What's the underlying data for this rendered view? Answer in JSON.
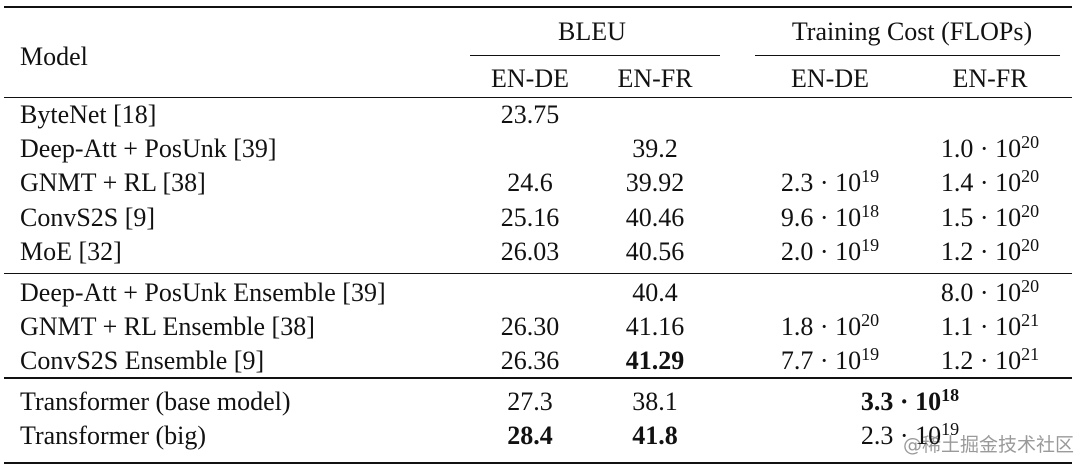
{
  "table": {
    "header": {
      "model": "Model",
      "bleu": "BLEU",
      "cost": "Training Cost (FLOPs)",
      "sub": [
        "EN-DE",
        "EN-FR",
        "EN-DE",
        "EN-FR"
      ]
    },
    "groups": [
      {
        "rows": [
          {
            "model": "ByteNet [18]",
            "bleu": [
              "23.75",
              null
            ],
            "cost": [
              null,
              null
            ]
          },
          {
            "model": "Deep-Att + PosUnk [39]",
            "bleu": [
              null,
              "39.2"
            ],
            "cost": [
              null,
              {
                "base": "1.0 · 10",
                "exp": "20"
              }
            ]
          },
          {
            "model": "GNMT + RL [38]",
            "bleu": [
              "24.6",
              "39.92"
            ],
            "cost": [
              {
                "base": "2.3 · 10",
                "exp": "19"
              },
              {
                "base": "1.4 · 10",
                "exp": "20"
              }
            ]
          },
          {
            "model": "ConvS2S [9]",
            "bleu": [
              "25.16",
              "40.46"
            ],
            "cost": [
              {
                "base": "9.6 · 10",
                "exp": "18"
              },
              {
                "base": "1.5 · 10",
                "exp": "20"
              }
            ]
          },
          {
            "model": "MoE [32]",
            "bleu": [
              "26.03",
              "40.56"
            ],
            "cost": [
              {
                "base": "2.0 · 10",
                "exp": "19"
              },
              {
                "base": "1.2 · 10",
                "exp": "20"
              }
            ]
          }
        ]
      },
      {
        "rows": [
          {
            "model": "Deep-Att + PosUnk Ensemble [39]",
            "bleu": [
              null,
              "40.4"
            ],
            "cost": [
              null,
              {
                "base": "8.0 · 10",
                "exp": "20"
              }
            ]
          },
          {
            "model": "GNMT + RL Ensemble [38]",
            "bleu": [
              "26.30",
              "41.16"
            ],
            "cost": [
              {
                "base": "1.8 · 10",
                "exp": "20"
              },
              {
                "base": "1.1 · 10",
                "exp": "21"
              }
            ]
          },
          {
            "model": "ConvS2S Ensemble [9]",
            "bleu": [
              "26.36",
              {
                "text": "41.29",
                "bold": true
              }
            ],
            "cost": [
              {
                "base": "7.7 · 10",
                "exp": "19"
              },
              {
                "base": "1.2 · 10",
                "exp": "21"
              }
            ]
          }
        ]
      },
      {
        "rows": [
          {
            "model": "Transformer (base model)",
            "bleu": [
              "27.3",
              "38.1"
            ],
            "cost": [
              {
                "base": "3.3 · 10",
                "exp": "18",
                "bold": true
              }
            ]
          },
          {
            "model": "Transformer (big)",
            "bleu": [
              {
                "text": "28.4",
                "bold": true
              },
              {
                "text": "41.8",
                "bold": true
              }
            ],
            "cost": [
              {
                "base": "2.3 · 10",
                "exp": "19"
              }
            ]
          }
        ]
      }
    ]
  },
  "watermark": "@稀土掘金技术社区"
}
